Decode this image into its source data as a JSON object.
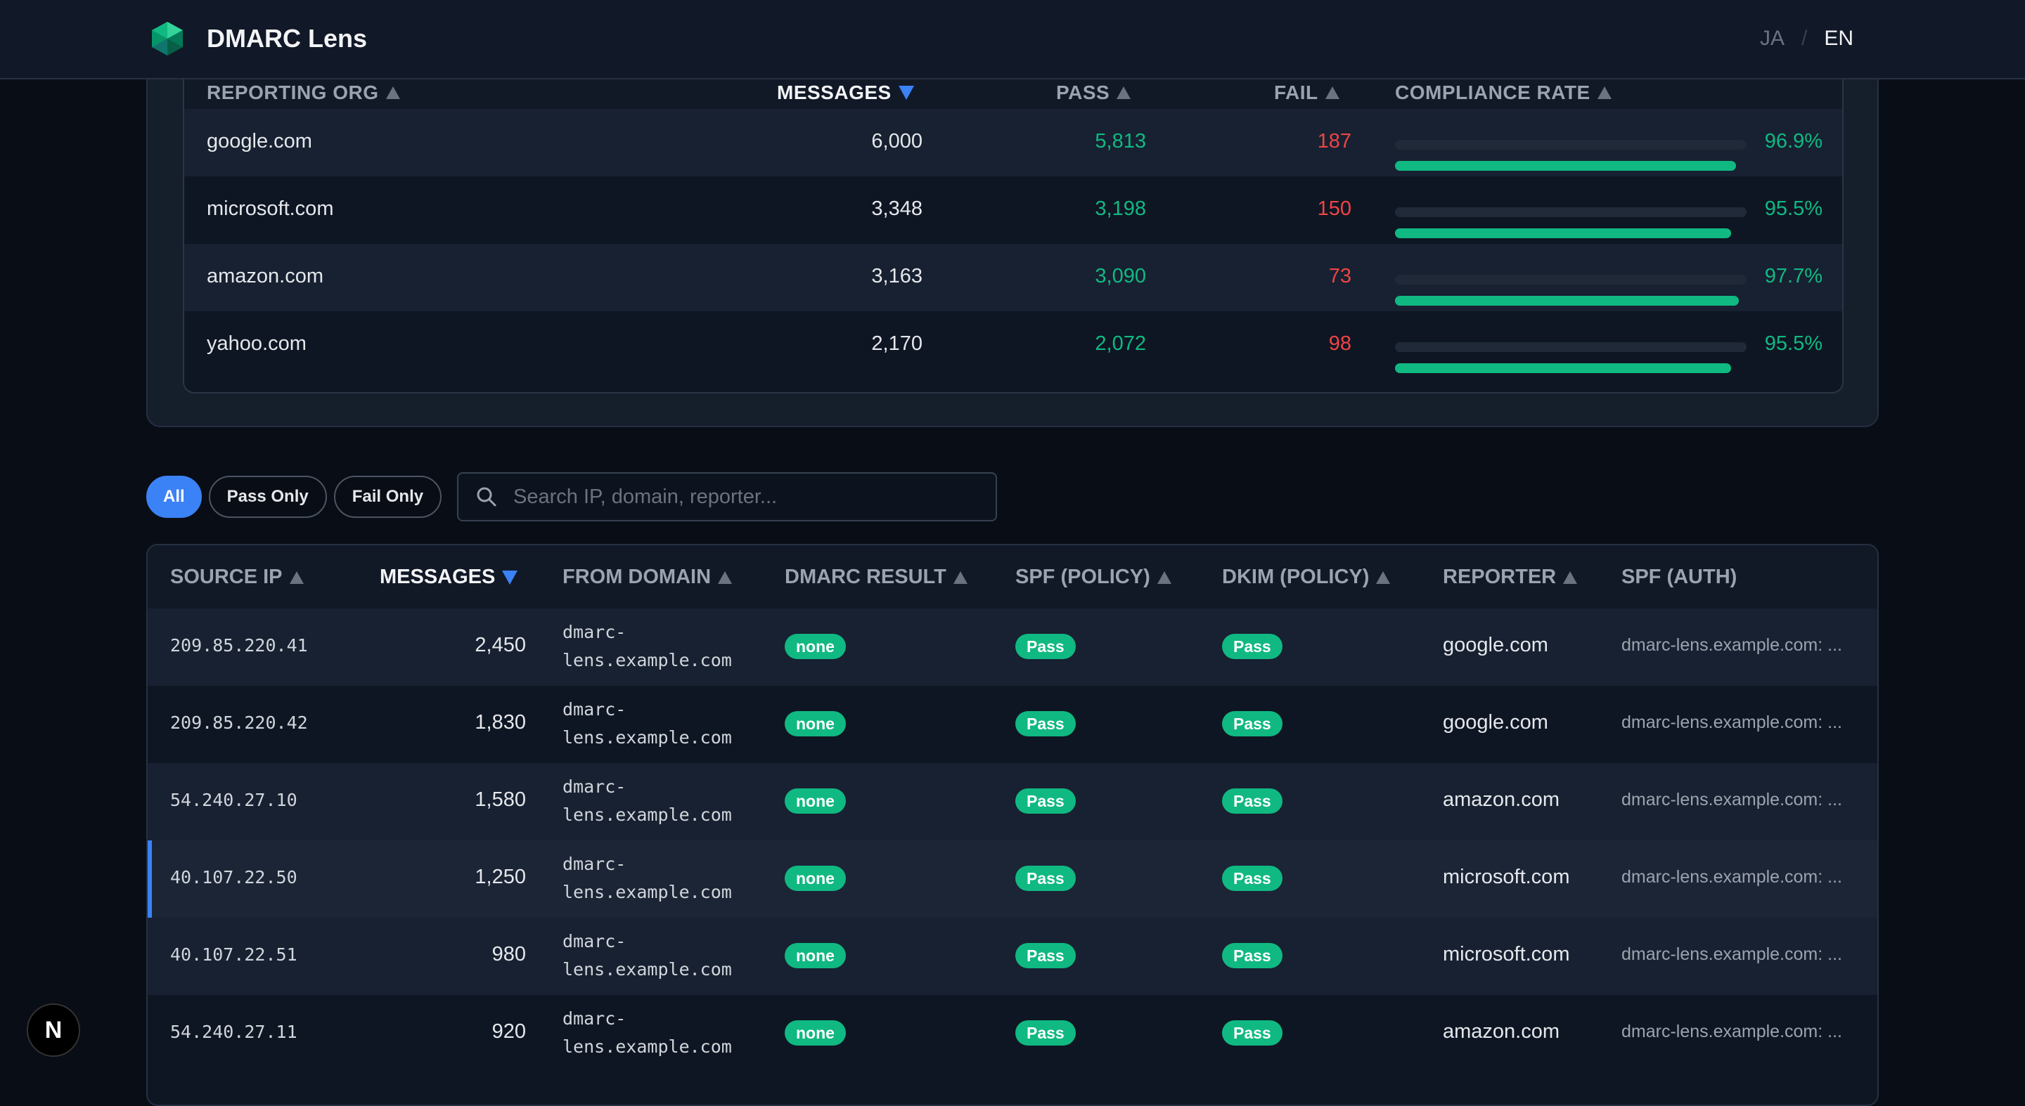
{
  "app": {
    "name": "DMARC Lens"
  },
  "lang": {
    "ja": "JA",
    "sep": "/",
    "en": "EN"
  },
  "org_table": {
    "headers": {
      "org": "REPORTING ORG",
      "messages": "MESSAGES",
      "pass": "PASS",
      "fail": "FAIL",
      "rate": "COMPLIANCE RATE"
    },
    "rows": [
      {
        "org": "google.com",
        "messages": "6,000",
        "pass": "5,813",
        "fail": "187",
        "rate": "96.9%",
        "rate_value": 0.969
      },
      {
        "org": "microsoft.com",
        "messages": "3,348",
        "pass": "3,198",
        "fail": "150",
        "rate": "95.5%",
        "rate_value": 0.955
      },
      {
        "org": "amazon.com",
        "messages": "3,163",
        "pass": "3,090",
        "fail": "73",
        "rate": "97.7%",
        "rate_value": 0.977
      },
      {
        "org": "yahoo.com",
        "messages": "2,170",
        "pass": "2,072",
        "fail": "98",
        "rate": "95.5%",
        "rate_value": 0.955
      }
    ]
  },
  "filters": {
    "all": "All",
    "pass_only": "Pass Only",
    "fail_only": "Fail Only",
    "search_placeholder": "Search IP, domain, reporter..."
  },
  "records": {
    "headers": {
      "source_ip": "SOURCE IP",
      "messages": "MESSAGES",
      "from_domain": "FROM DOMAIN",
      "dmarc": "DMARC RESULT",
      "spf": "SPF (POLICY)",
      "dkim": "DKIM (POLICY)",
      "reporter": "REPORTER",
      "spf_auth": "SPF (AUTH)"
    },
    "rows": [
      {
        "ip": "209.85.220.41",
        "messages": "2,450",
        "domain_a": "dmarc-",
        "domain_b": "lens.example.com",
        "dmarc": "none",
        "spf": "Pass",
        "dkim": "Pass",
        "reporter": "google.com",
        "auth": "dmarc-lens.example.com: ..."
      },
      {
        "ip": "209.85.220.42",
        "messages": "1,830",
        "domain_a": "dmarc-",
        "domain_b": "lens.example.com",
        "dmarc": "none",
        "spf": "Pass",
        "dkim": "Pass",
        "reporter": "google.com",
        "auth": "dmarc-lens.example.com: ..."
      },
      {
        "ip": "54.240.27.10",
        "messages": "1,580",
        "domain_a": "dmarc-",
        "domain_b": "lens.example.com",
        "dmarc": "none",
        "spf": "Pass",
        "dkim": "Pass",
        "reporter": "amazon.com",
        "auth": "dmarc-lens.example.com: ..."
      },
      {
        "ip": "40.107.22.50",
        "messages": "1,250",
        "domain_a": "dmarc-",
        "domain_b": "lens.example.com",
        "dmarc": "none",
        "spf": "Pass",
        "dkim": "Pass",
        "reporter": "microsoft.com",
        "auth": "dmarc-lens.example.com: ..."
      },
      {
        "ip": "40.107.22.51",
        "messages": "980",
        "domain_a": "dmarc-",
        "domain_b": "lens.example.com",
        "dmarc": "none",
        "spf": "Pass",
        "dkim": "Pass",
        "reporter": "microsoft.com",
        "auth": "dmarc-lens.example.com: ..."
      },
      {
        "ip": "54.240.27.11",
        "messages": "920",
        "domain_a": "dmarc-",
        "domain_b": "lens.example.com",
        "dmarc": "none",
        "spf": "Pass",
        "dkim": "Pass",
        "reporter": "amazon.com",
        "auth": "dmarc-lens.example.com: ..."
      }
    ]
  },
  "dev_badge": "N",
  "colors": {
    "accent": "#3b82f6",
    "pass": "#10b981",
    "fail": "#ef4444"
  }
}
